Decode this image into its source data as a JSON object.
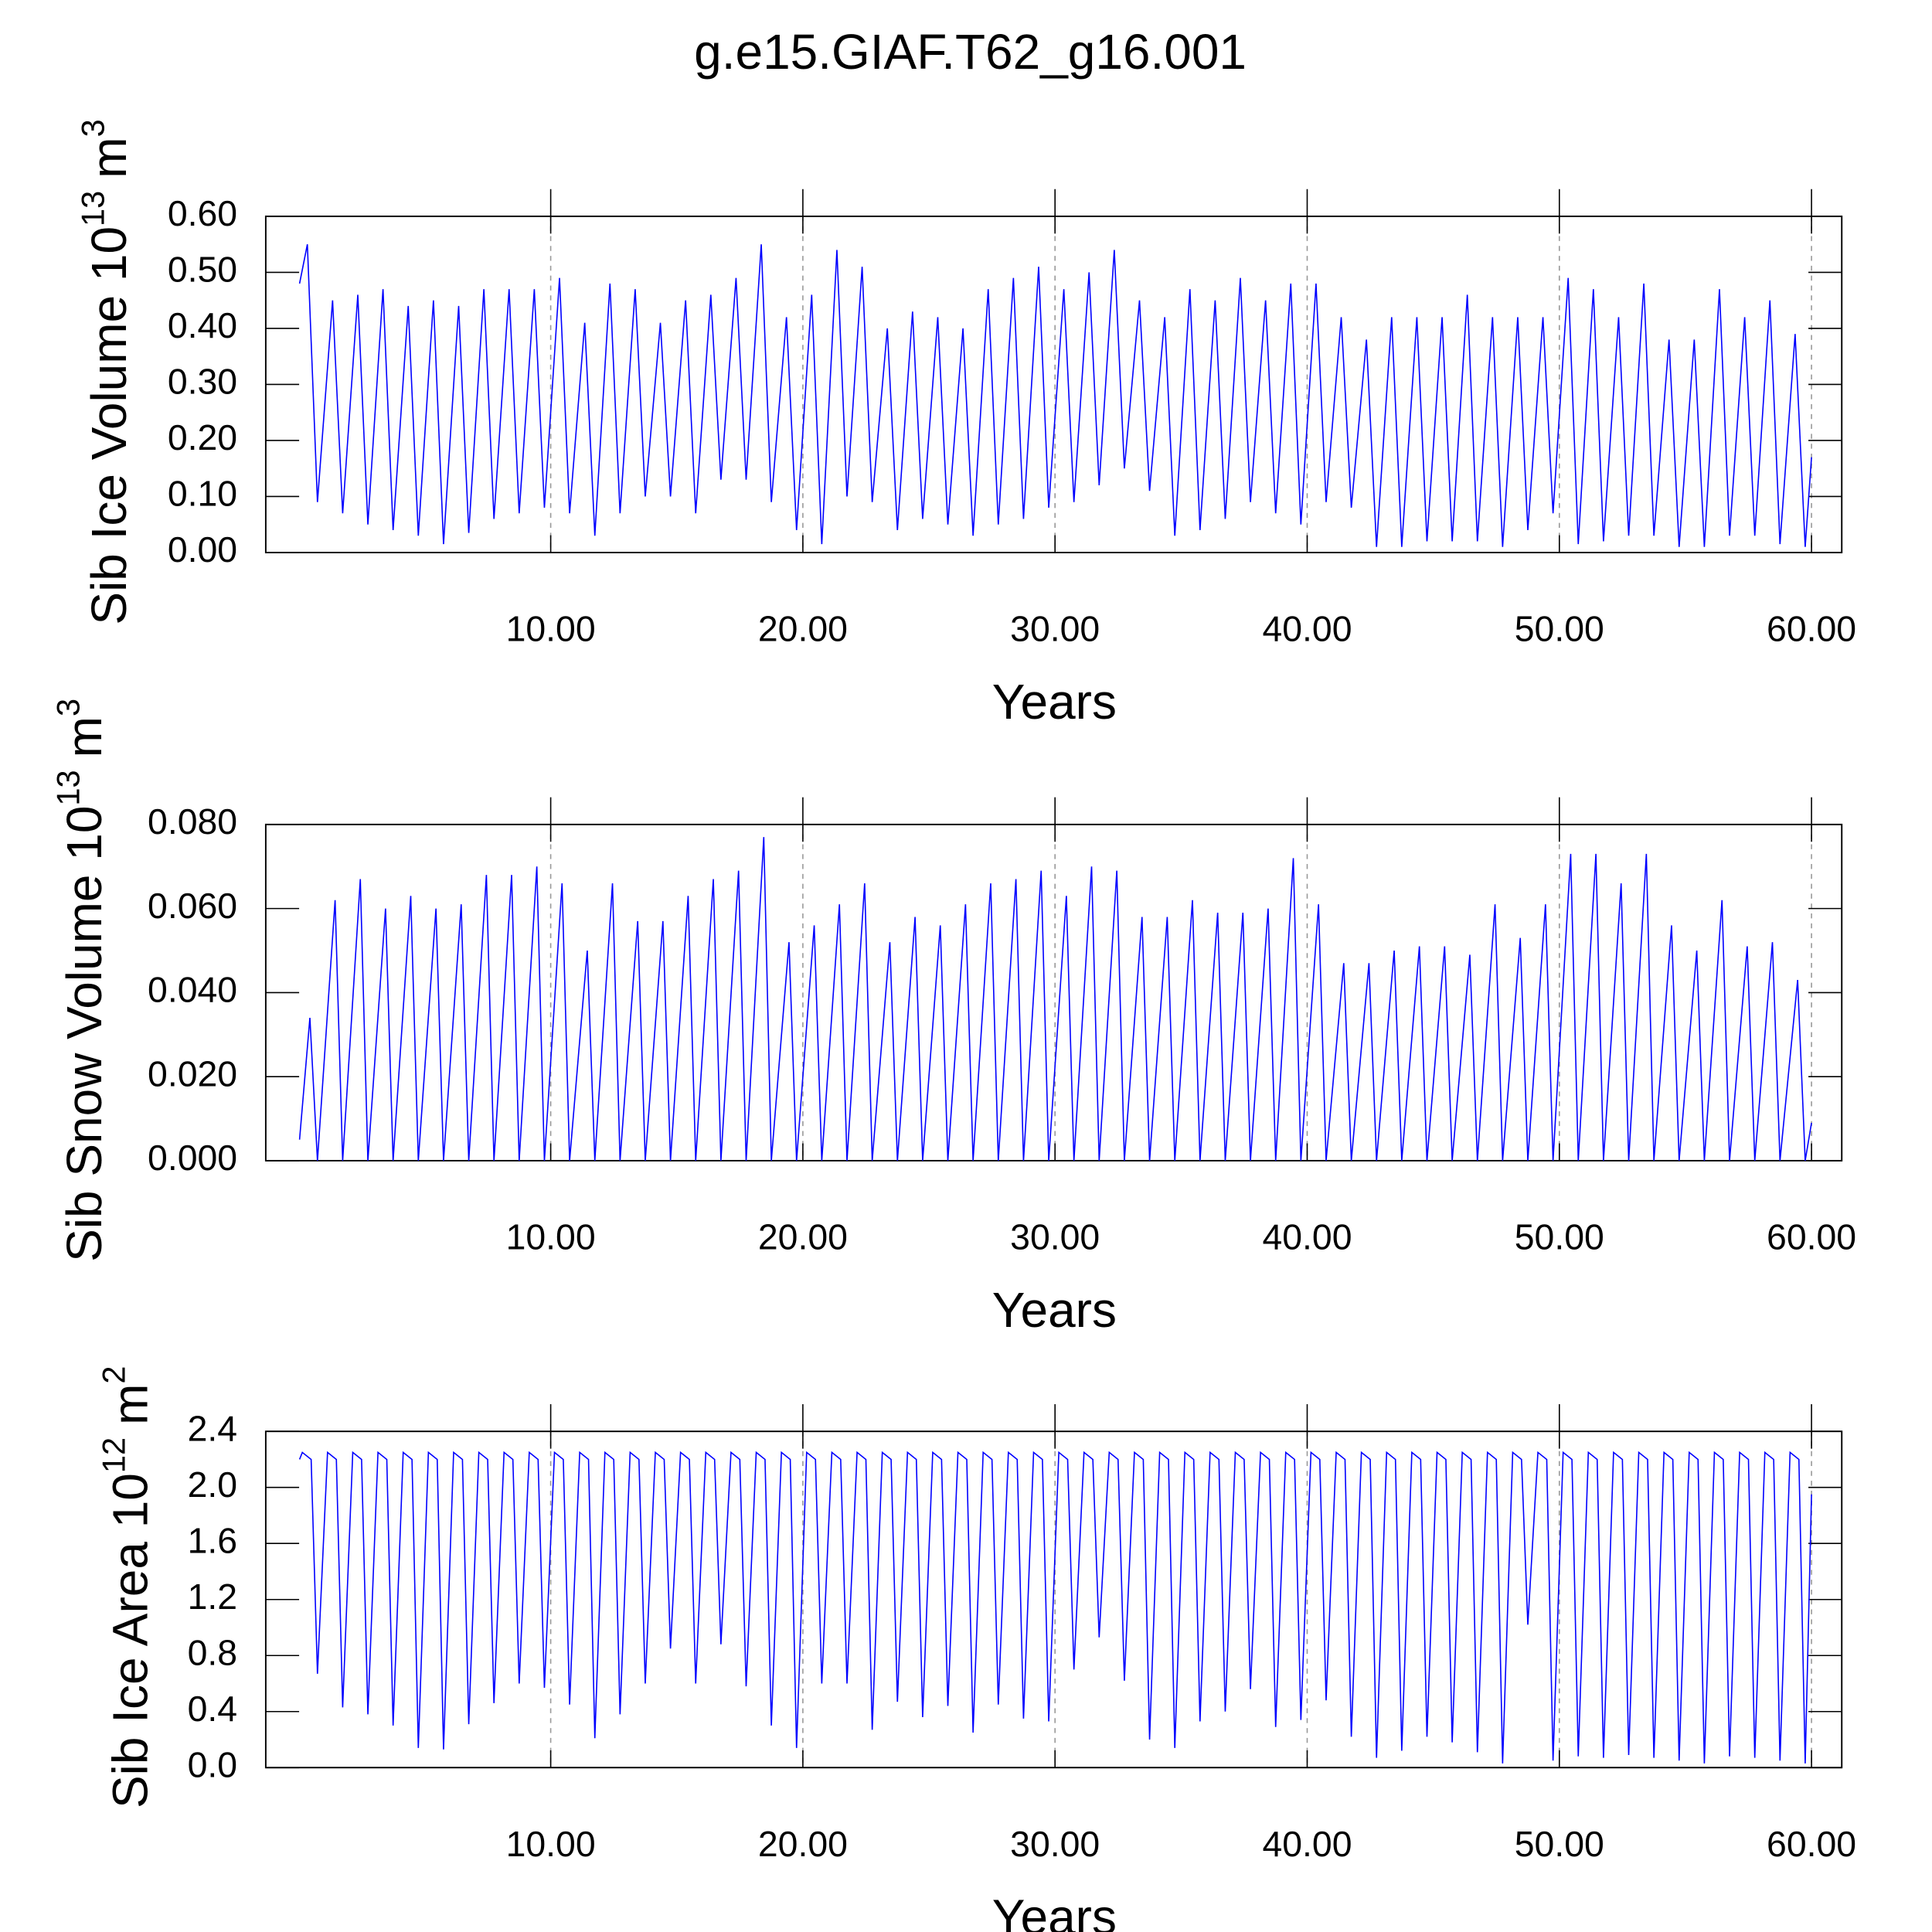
{
  "chart_data": [
    {
      "type": "line",
      "title": "g.e15.GIAF.T62_g16.001",
      "ylabel": [
        "Sib Ice Volume 10",
        "13",
        "m",
        "3"
      ],
      "xlabel": "Years",
      "xlim": [
        -1.3,
        61.2
      ],
      "ylim": [
        0,
        0.6
      ],
      "xticks": [
        {
          "value": 10,
          "label": "10.00"
        },
        {
          "value": 20,
          "label": "20.00"
        },
        {
          "value": 30,
          "label": "30.00"
        },
        {
          "value": 40,
          "label": "40.00"
        },
        {
          "value": 50,
          "label": "50.00"
        },
        {
          "value": 60,
          "label": "60.00"
        }
      ],
      "yticks": [
        {
          "value": 0,
          "label": "0.00"
        },
        {
          "value": 0.1,
          "label": "0.10"
        },
        {
          "value": 0.2,
          "label": "0.20"
        },
        {
          "value": 0.3,
          "label": "0.30"
        },
        {
          "value": 0.4,
          "label": "0.40"
        },
        {
          "value": 0.5,
          "label": "0.50"
        },
        {
          "value": 0.6,
          "label": "0.60"
        }
      ],
      "xgrid": true,
      "x": [
        0.04,
        0.35,
        0.75,
        1.35,
        1.75,
        2.35,
        2.75,
        3.35,
        3.75,
        4.35,
        4.75,
        5.35,
        5.75,
        6.35,
        6.75,
        7.35,
        7.75,
        8.35,
        8.75,
        9.35,
        9.75,
        10.35,
        10.75,
        11.35,
        11.75,
        12.35,
        12.75,
        13.35,
        13.75,
        14.35,
        14.75,
        15.35,
        15.75,
        16.35,
        16.75,
        17.35,
        17.75,
        18.35,
        18.75,
        19.35,
        19.75,
        20.35,
        20.75,
        21.35,
        21.75,
        22.35,
        22.75,
        23.35,
        23.75,
        24.35,
        24.75,
        25.35,
        25.75,
        26.35,
        26.75,
        27.35,
        27.75,
        28.35,
        28.75,
        29.35,
        29.75,
        30.35,
        30.75,
        31.35,
        31.75,
        32.35,
        32.75,
        33.35,
        33.75,
        34.35,
        34.75,
        35.35,
        35.75,
        36.35,
        36.75,
        37.35,
        37.75,
        38.35,
        38.75,
        39.35,
        39.75,
        40.35,
        40.75,
        41.35,
        41.75,
        42.35,
        42.75,
        43.35,
        43.75,
        44.35,
        44.75,
        45.35,
        45.75,
        46.35,
        46.75,
        47.35,
        47.75,
        48.35,
        48.75,
        49.35,
        49.75,
        50.35,
        50.75,
        51.35,
        51.75,
        52.35,
        52.75,
        53.35,
        53.75,
        54.35,
        54.75,
        55.35,
        55.75,
        56.35,
        56.75,
        57.35,
        57.75,
        58.35,
        58.75,
        59.35,
        59.75,
        60
      ],
      "series": [
        {
          "color": "#0000ff",
          "values": [
            0.48,
            0.55,
            0.09,
            0.45,
            0.07,
            0.46,
            0.05,
            0.47,
            0.04,
            0.44,
            0.03,
            0.45,
            0.015,
            0.44,
            0.035,
            0.47,
            0.06,
            0.47,
            0.07,
            0.47,
            0.08,
            0.49,
            0.07,
            0.41,
            0.03,
            0.48,
            0.07,
            0.47,
            0.1,
            0.41,
            0.1,
            0.45,
            0.07,
            0.46,
            0.13,
            0.49,
            0.13,
            0.55,
            0.09,
            0.42,
            0.04,
            0.46,
            0.015,
            0.54,
            0.1,
            0.51,
            0.09,
            0.4,
            0.04,
            0.43,
            0.06,
            0.42,
            0.05,
            0.4,
            0.03,
            0.47,
            0.05,
            0.49,
            0.06,
            0.51,
            0.08,
            0.47,
            0.09,
            0.5,
            0.12,
            0.54,
            0.15,
            0.45,
            0.11,
            0.42,
            0.03,
            0.47,
            0.04,
            0.45,
            0.06,
            0.49,
            0.09,
            0.45,
            0.07,
            0.48,
            0.05,
            0.48,
            0.09,
            0.42,
            0.08,
            0.38,
            0.01,
            0.42,
            0.01,
            0.42,
            0.02,
            0.42,
            0.02,
            0.46,
            0.02,
            0.42,
            0.01,
            0.42,
            0.04,
            0.42,
            0.07,
            0.49,
            0.015,
            0.47,
            0.02,
            0.42,
            0.03,
            0.48,
            0.03,
            0.38,
            0.01,
            0.38,
            0.01,
            0.47,
            0.03,
            0.42,
            0.03,
            0.45,
            0.015,
            0.39,
            0.01,
            0.17
          ]
        }
      ]
    },
    {
      "type": "line",
      "ylabel": [
        "Sib Snow Volume 10",
        "13",
        "m",
        "3"
      ],
      "xlabel": "Years",
      "xlim": [
        -1.3,
        61.2
      ],
      "ylim": [
        0,
        0.08
      ],
      "xticks": [
        {
          "value": 10,
          "label": "10.00"
        },
        {
          "value": 20,
          "label": "20.00"
        },
        {
          "value": 30,
          "label": "30.00"
        },
        {
          "value": 40,
          "label": "40.00"
        },
        {
          "value": 50,
          "label": "50.00"
        },
        {
          "value": 60,
          "label": "60.00"
        }
      ],
      "yticks": [
        {
          "value": 0,
          "label": "0.000"
        },
        {
          "value": 0.02,
          "label": "0.020"
        },
        {
          "value": 0.04,
          "label": "0.040"
        },
        {
          "value": 0.06,
          "label": "0.060"
        },
        {
          "value": 0.08,
          "label": "0.080"
        }
      ],
      "xgrid": true,
      "x": [
        0.04,
        0.45,
        0.75,
        1.45,
        1.75,
        2.45,
        2.75,
        3.45,
        3.75,
        4.45,
        4.75,
        5.45,
        5.75,
        6.45,
        6.75,
        7.45,
        7.75,
        8.45,
        8.75,
        9.45,
        9.75,
        10.45,
        10.75,
        11.45,
        11.75,
        12.45,
        12.75,
        13.45,
        13.75,
        14.45,
        14.75,
        15.45,
        15.75,
        16.45,
        16.75,
        17.45,
        17.75,
        18.45,
        18.75,
        19.45,
        19.75,
        20.45,
        20.75,
        21.45,
        21.75,
        22.45,
        22.75,
        23.45,
        23.75,
        24.45,
        24.75,
        25.45,
        25.75,
        26.45,
        26.75,
        27.45,
        27.75,
        28.45,
        28.75,
        29.45,
        29.75,
        30.45,
        30.75,
        31.45,
        31.75,
        32.45,
        32.75,
        33.45,
        33.75,
        34.45,
        34.75,
        35.45,
        35.75,
        36.45,
        36.75,
        37.45,
        37.75,
        38.45,
        38.75,
        39.45,
        39.75,
        40.45,
        40.75,
        41.45,
        41.75,
        42.45,
        42.75,
        43.45,
        43.75,
        44.45,
        44.75,
        45.45,
        45.75,
        46.45,
        46.75,
        47.45,
        47.75,
        48.45,
        48.75,
        49.45,
        49.75,
        50.45,
        50.75,
        51.45,
        51.75,
        52.45,
        52.75,
        53.45,
        53.75,
        54.45,
        54.75,
        55.45,
        55.75,
        56.45,
        56.75,
        57.45,
        57.75,
        58.45,
        58.75,
        59.45,
        59.75,
        60
      ],
      "series": [
        {
          "color": "#0000ff",
          "values": [
            0.005,
            0.034,
            0,
            0.062,
            0,
            0.067,
            0,
            0.06,
            0,
            0.063,
            0,
            0.06,
            0,
            0.061,
            0,
            0.068,
            0,
            0.068,
            0,
            0.07,
            0,
            0.066,
            0,
            0.05,
            0,
            0.066,
            0,
            0.057,
            0,
            0.057,
            0,
            0.063,
            0,
            0.067,
            0,
            0.069,
            0,
            0.077,
            0,
            0.052,
            0,
            0.056,
            0,
            0.061,
            0,
            0.066,
            0,
            0.052,
            0,
            0.058,
            0,
            0.056,
            0,
            0.061,
            0,
            0.066,
            0,
            0.067,
            0,
            0.069,
            0,
            0.063,
            0,
            0.07,
            0,
            0.069,
            0,
            0.058,
            0,
            0.058,
            0,
            0.062,
            0,
            0.059,
            0,
            0.059,
            0,
            0.06,
            0,
            0.072,
            0,
            0.061,
            0,
            0.047,
            0,
            0.047,
            0,
            0.05,
            0,
            0.051,
            0,
            0.051,
            0,
            0.049,
            0,
            0.061,
            0,
            0.053,
            0,
            0.061,
            0,
            0.073,
            0,
            0.073,
            0,
            0.066,
            0,
            0.073,
            0,
            0.056,
            0,
            0.05,
            0,
            0.062,
            0,
            0.051,
            0,
            0.052,
            0,
            0.043,
            0,
            0.009
          ]
        }
      ]
    },
    {
      "type": "line",
      "ylabel": [
        "Sib Ice Area 10",
        "12",
        "m",
        "2"
      ],
      "xlabel": "Years",
      "xlim": [
        -1.3,
        61.2
      ],
      "ylim": [
        0,
        2.4
      ],
      "xticks": [
        {
          "value": 10,
          "label": "10.00"
        },
        {
          "value": 20,
          "label": "20.00"
        },
        {
          "value": 30,
          "label": "30.00"
        },
        {
          "value": 40,
          "label": "40.00"
        },
        {
          "value": 50,
          "label": "50.00"
        },
        {
          "value": 60,
          "label": "60.00"
        }
      ],
      "yticks": [
        {
          "value": 0,
          "label": "0.0"
        },
        0.4,
        0.8,
        1.2,
        1.6,
        {
          "value": 2,
          "label": "2.0"
        },
        2.4
      ],
      "xgrid": true,
      "x": [
        0.04,
        0.15,
        0.5,
        0.75,
        1.15,
        1.5,
        1.75,
        2.15,
        2.5,
        2.75,
        3.15,
        3.5,
        3.75,
        4.15,
        4.5,
        4.75,
        5.15,
        5.5,
        5.75,
        6.15,
        6.5,
        6.75,
        7.15,
        7.5,
        7.75,
        8.15,
        8.5,
        8.75,
        9.15,
        9.5,
        9.75,
        10.15,
        10.5,
        10.75,
        11.15,
        11.5,
        11.75,
        12.15,
        12.5,
        12.75,
        13.15,
        13.5,
        13.75,
        14.15,
        14.5,
        14.75,
        15.15,
        15.5,
        15.75,
        16.15,
        16.5,
        16.75,
        17.15,
        17.5,
        17.75,
        18.15,
        18.5,
        18.75,
        19.15,
        19.5,
        19.75,
        20.15,
        20.5,
        20.75,
        21.15,
        21.5,
        21.75,
        22.15,
        22.5,
        22.75,
        23.15,
        23.5,
        23.75,
        24.15,
        24.5,
        24.75,
        25.15,
        25.5,
        25.75,
        26.15,
        26.5,
        26.75,
        27.15,
        27.5,
        27.75,
        28.15,
        28.5,
        28.75,
        29.15,
        29.5,
        29.75,
        30.15,
        30.5,
        30.75,
        31.15,
        31.5,
        31.75,
        32.15,
        32.5,
        32.75,
        33.15,
        33.5,
        33.75,
        34.15,
        34.5,
        34.75,
        35.15,
        35.5,
        35.75,
        36.15,
        36.5,
        36.75,
        37.15,
        37.5,
        37.75,
        38.15,
        38.5,
        38.75,
        39.15,
        39.5,
        39.75,
        40.15,
        40.5,
        40.75,
        41.15,
        41.5,
        41.75,
        42.15,
        42.5,
        42.75,
        43.15,
        43.5,
        43.75,
        44.15,
        44.5,
        44.75,
        45.15,
        45.5,
        45.75,
        46.15,
        46.5,
        46.75,
        47.15,
        47.5,
        47.75,
        48.15,
        48.5,
        48.75,
        49.15,
        49.5,
        49.75,
        50.15,
        50.5,
        50.75,
        51.15,
        51.5,
        51.75,
        52.15,
        52.5,
        52.75,
        53.15,
        53.5,
        53.75,
        54.15,
        54.5,
        54.75,
        55.15,
        55.5,
        55.75,
        56.15,
        56.5,
        56.75,
        57.15,
        57.5,
        57.75,
        58.15,
        58.5,
        58.75,
        59.15,
        59.5,
        59.75,
        60
      ],
      "series": [
        {
          "color": "#0000ff",
          "values": [
            2.2,
            2.25,
            2.2,
            0.67,
            2.25,
            2.2,
            0.43,
            2.25,
            2.2,
            0.38,
            2.25,
            2.2,
            0.3,
            2.25,
            2.2,
            0.14,
            2.25,
            2.2,
            0.13,
            2.25,
            2.2,
            0.31,
            2.25,
            2.2,
            0.46,
            2.25,
            2.2,
            0.6,
            2.25,
            2.2,
            0.57,
            2.25,
            2.2,
            0.45,
            2.25,
            2.2,
            0.21,
            2.25,
            2.2,
            0.38,
            2.25,
            2.2,
            0.6,
            2.25,
            2.2,
            0.85,
            2.25,
            2.2,
            0.6,
            2.25,
            2.2,
            0.88,
            2.25,
            2.2,
            0.58,
            2.25,
            2.2,
            0.3,
            2.25,
            2.2,
            0.14,
            2.25,
            2.2,
            0.6,
            2.25,
            2.2,
            0.6,
            2.25,
            2.2,
            0.27,
            2.25,
            2.2,
            0.47,
            2.25,
            2.2,
            0.36,
            2.25,
            2.2,
            0.44,
            2.25,
            2.2,
            0.25,
            2.25,
            2.2,
            0.45,
            2.25,
            2.2,
            0.35,
            2.25,
            2.2,
            0.33,
            2.25,
            2.2,
            0.7,
            2.25,
            2.2,
            0.93,
            2.25,
            2.2,
            0.62,
            2.25,
            2.2,
            0.2,
            2.25,
            2.2,
            0.14,
            2.25,
            2.2,
            0.33,
            2.25,
            2.2,
            0.4,
            2.25,
            2.2,
            0.56,
            2.25,
            2.2,
            0.29,
            2.25,
            2.2,
            0.34,
            2.25,
            2.2,
            0.48,
            2.25,
            2.2,
            0.22,
            2.25,
            2.2,
            0.07,
            2.25,
            2.2,
            0.12,
            2.25,
            2.2,
            0.22,
            2.25,
            2.2,
            0.18,
            2.25,
            2.2,
            0.11,
            2.25,
            2.2,
            0.03,
            2.25,
            2.2,
            1.02,
            2.25,
            2.2,
            0.05,
            2.25,
            2.2,
            0.08,
            2.25,
            2.2,
            0.07,
            2.25,
            2.2,
            0.09,
            2.25,
            2.2,
            0.07,
            2.25,
            2.2,
            0.05,
            2.25,
            2.2,
            0.03,
            2.25,
            2.2,
            0.08,
            2.25,
            2.2,
            0.07,
            2.25,
            2.2,
            0.05,
            2.25,
            2.2,
            0.03,
            1.95
          ]
        }
      ]
    }
  ]
}
